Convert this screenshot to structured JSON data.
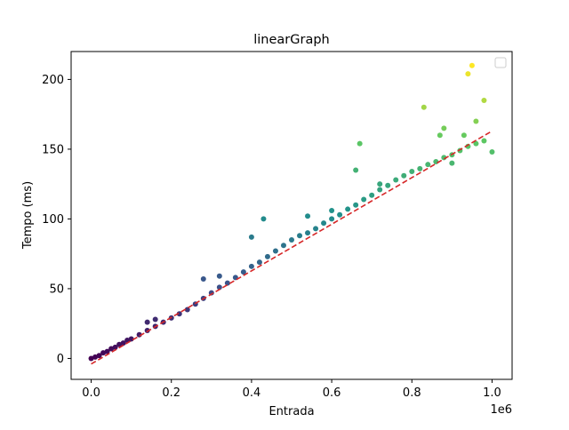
{
  "chart_data": {
    "type": "scatter",
    "title": "linearGraph",
    "xlabel": "Entrada",
    "ylabel": "Tempo (ms)",
    "x_offset_label": "1e6",
    "xlim": [
      -50000,
      1050000
    ],
    "ylim": [
      -15,
      220
    ],
    "x_ticks": [
      0,
      200000,
      400000,
      600000,
      800000,
      1000000
    ],
    "x_tick_labels": [
      "0.0",
      "0.2",
      "0.4",
      "0.6",
      "0.8",
      "1.0"
    ],
    "y_ticks": [
      0,
      50,
      100,
      150,
      200
    ],
    "y_tick_labels": [
      "0",
      "50",
      "100",
      "150",
      "200"
    ],
    "colormap": "viridis",
    "legend": "upper right (empty)",
    "grid": false,
    "series": [
      {
        "kind": "points",
        "x": [
          0,
          10000,
          20000,
          30000,
          40000,
          50000,
          60000,
          70000,
          80000,
          90000,
          100000,
          120000,
          140000,
          160000,
          180000,
          200000,
          220000,
          240000,
          260000,
          280000,
          300000,
          320000,
          340000,
          360000,
          380000,
          400000,
          420000,
          440000,
          460000,
          480000,
          500000,
          520000,
          540000,
          560000,
          580000,
          600000,
          620000,
          640000,
          660000,
          680000,
          700000,
          720000,
          740000,
          760000,
          780000,
          800000,
          820000,
          840000,
          860000,
          880000,
          900000,
          920000,
          940000,
          960000,
          980000,
          1000000,
          140000,
          160000,
          280000,
          320000,
          400000,
          430000,
          540000,
          600000,
          660000,
          670000,
          720000,
          830000,
          870000,
          880000,
          900000,
          930000,
          940000,
          950000,
          960000,
          980000
        ],
        "y": [
          0,
          1,
          2,
          4,
          5,
          7,
          8,
          10,
          11,
          13,
          14,
          17,
          20,
          23,
          26,
          29,
          32,
          35,
          39,
          43,
          47,
          51,
          54,
          58,
          62,
          66,
          69,
          73,
          77,
          81,
          85,
          88,
          90,
          93,
          97,
          100,
          103,
          107,
          110,
          114,
          117,
          121,
          124,
          128,
          131,
          134,
          136,
          139,
          141,
          144,
          146,
          149,
          152,
          154,
          156,
          148,
          26,
          28,
          57,
          59,
          87,
          100,
          102,
          106,
          135,
          154,
          125,
          180,
          160,
          165,
          140,
          160,
          204,
          210,
          170,
          185
        ]
      },
      {
        "kind": "fit-line",
        "color": "#d62728",
        "x": [
          0,
          1000000
        ],
        "y": [
          -4,
          163
        ]
      }
    ]
  }
}
